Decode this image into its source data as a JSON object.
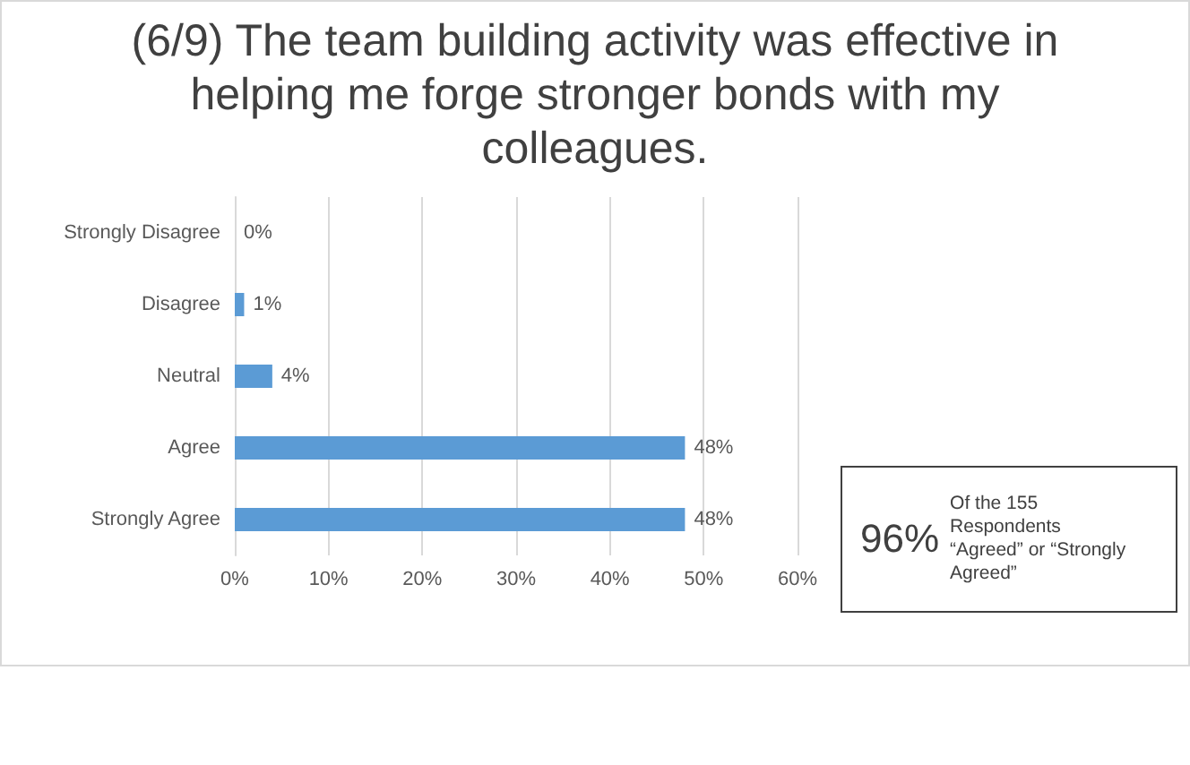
{
  "chart_data": {
    "type": "bar",
    "orientation": "horizontal",
    "title": "(6/9) The team building activity was effective in helping me forge stronger bonds with my colleagues.",
    "categories": [
      "Strongly Disagree",
      "Disagree",
      "Neutral",
      "Agree",
      "Strongly Agree"
    ],
    "values": [
      0,
      1,
      4,
      48,
      48
    ],
    "value_labels": [
      "0%",
      "1%",
      "4%",
      "48%",
      "48%"
    ],
    "color": "#5b9bd5",
    "xlim": [
      0,
      60
    ],
    "xticks": [
      {
        "value": 0,
        "label": "0%"
      },
      {
        "value": 10,
        "label": "10%"
      },
      {
        "value": 20,
        "label": "20%"
      },
      {
        "value": 30,
        "label": "30%"
      },
      {
        "value": 40,
        "label": "40%"
      },
      {
        "value": 50,
        "label": "50%"
      },
      {
        "value": 60,
        "label": "60%"
      }
    ],
    "grid": "x",
    "annotations": [
      "96%",
      "Of the 155 Respondents “Agreed” or “Strongly Agreed”"
    ]
  }
}
